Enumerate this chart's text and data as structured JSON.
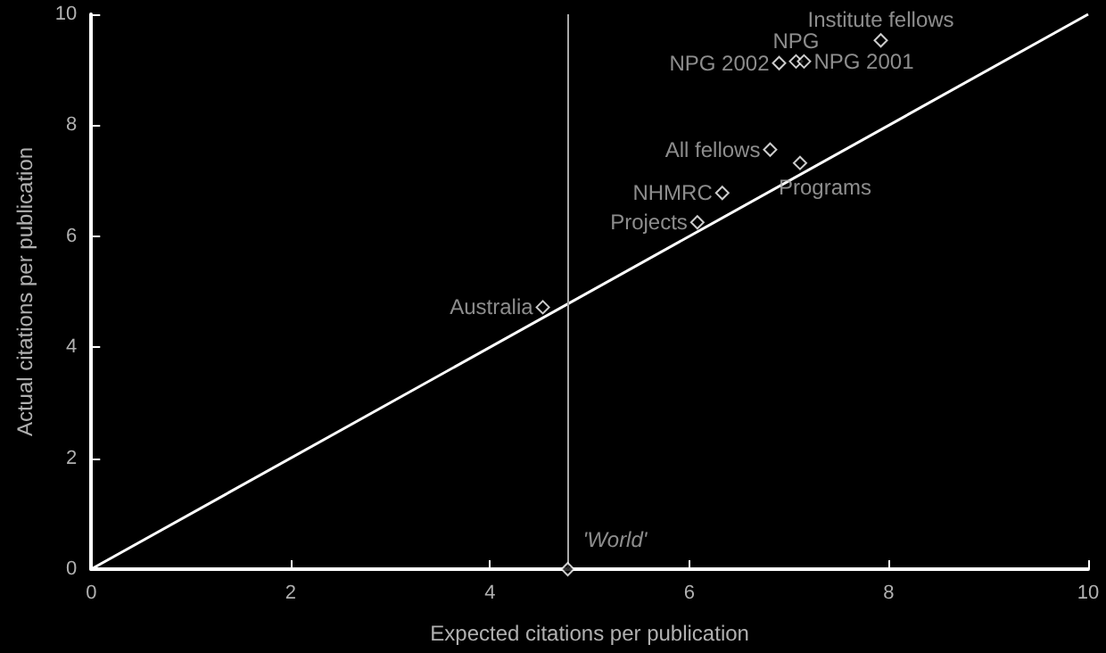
{
  "chart_data": {
    "type": "scatter",
    "xlabel": "Expected citations per publication",
    "ylabel": "Actual citations per publication",
    "xlim": [
      0,
      10
    ],
    "ylim": [
      0,
      10
    ],
    "xticks": [
      0,
      2,
      4,
      6,
      8,
      10
    ],
    "yticks": [
      0,
      2,
      4,
      6,
      8,
      10
    ],
    "grid": false,
    "marker": "diamond",
    "series": [
      {
        "color": "#ffffff",
        "x": [
          7.92,
          7.07,
          7.15,
          6.9,
          6.81,
          7.11,
          6.33,
          6.08,
          4.53,
          4.78
        ],
        "values": [
          9.53,
          9.15,
          9.15,
          9.12,
          7.56,
          7.32,
          6.78,
          6.25,
          4.72,
          0
        ]
      },
      {
        "type": "line",
        "color": "#ffffff",
        "marker": "none",
        "x": [
          0,
          10
        ],
        "values": [
          0,
          10
        ]
      }
    ],
    "ref_lines": [
      {
        "axis": "x",
        "value": 4.78,
        "color": "#aaaaaa"
      }
    ],
    "annotations": [
      {
        "text": "Institute fellows",
        "x": 7.92,
        "y": 9.53
      },
      {
        "text": "NPG",
        "x": 7.07,
        "y": 9.15
      },
      {
        "text": "NPG 2001",
        "x": 7.15,
        "y": 9.15
      },
      {
        "text": "NPG 2002",
        "x": 6.9,
        "y": 9.12
      },
      {
        "text": "All fellows",
        "x": 6.81,
        "y": 7.56
      },
      {
        "text": "Programs",
        "x": 7.11,
        "y": 7.32
      },
      {
        "text": "NHMRC",
        "x": 6.33,
        "y": 6.78
      },
      {
        "text": "Projects",
        "x": 6.08,
        "y": 6.25
      },
      {
        "text": "Australia",
        "x": 4.53,
        "y": 4.72
      },
      {
        "text": "'World'",
        "x": 4.78,
        "y": 0
      }
    ]
  }
}
